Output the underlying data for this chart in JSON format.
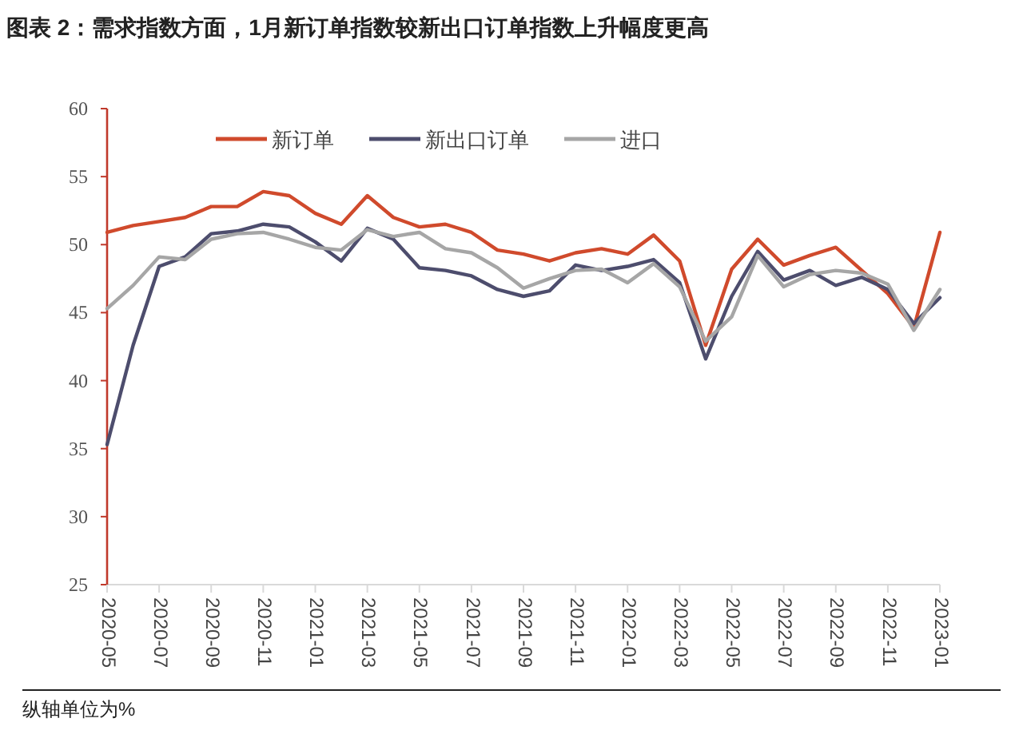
{
  "chart_data": {
    "type": "line",
    "title": "图表 2：需求指数方面，1月新订单指数较新出口订单指数上升幅度更高",
    "categories": [
      "2020-05",
      null,
      "2020-07",
      null,
      "2020-09",
      null,
      "2020-11",
      null,
      "2021-01",
      null,
      "2021-03",
      null,
      "2021-05",
      null,
      "2021-07",
      null,
      "2021-09",
      null,
      "2021-11",
      null,
      "2022-01",
      null,
      "2022-03",
      null,
      "2022-05",
      null,
      "2022-07",
      null,
      "2022-09",
      null,
      "2022-11",
      null,
      "2023-01"
    ],
    "series": [
      {
        "name": "新订单",
        "color": "#d04a2c",
        "values": [
          50.9,
          51.4,
          51.7,
          52.0,
          52.8,
          52.8,
          53.9,
          53.6,
          52.3,
          51.5,
          53.6,
          52.0,
          51.3,
          51.5,
          50.9,
          49.6,
          49.3,
          48.8,
          49.4,
          49.7,
          49.3,
          50.7,
          48.8,
          42.6,
          48.2,
          50.4,
          48.5,
          49.2,
          49.8,
          48.1,
          46.4,
          43.9,
          50.9
        ]
      },
      {
        "name": "新出口订单",
        "color": "#4d4d6d",
        "values": [
          35.3,
          42.6,
          48.4,
          49.1,
          50.8,
          51.0,
          51.5,
          51.3,
          50.2,
          48.8,
          51.2,
          50.4,
          48.3,
          48.1,
          47.7,
          46.7,
          46.2,
          46.6,
          48.5,
          48.1,
          48.4,
          48.9,
          47.2,
          41.6,
          46.2,
          49.5,
          47.4,
          48.1,
          47.0,
          47.6,
          46.7,
          44.2,
          46.1
        ]
      },
      {
        "name": "进口",
        "color": "#a6a6a6",
        "values": [
          45.3,
          47.0,
          49.1,
          48.9,
          50.4,
          50.8,
          50.9,
          50.4,
          49.8,
          49.6,
          51.1,
          50.6,
          50.9,
          49.7,
          49.4,
          48.3,
          46.8,
          47.5,
          48.1,
          48.2,
          47.2,
          48.6,
          46.9,
          42.9,
          44.7,
          49.2,
          46.9,
          47.8,
          48.1,
          47.9,
          47.1,
          43.7,
          46.7
        ]
      }
    ],
    "ylim": [
      25,
      60
    ],
    "yticks": [
      25,
      30,
      35,
      40,
      45,
      50,
      55,
      60
    ],
    "grid": false,
    "legend": "top",
    "marker": "none",
    "line_style": "solid",
    "annotations": [
      "纵轴单位为%"
    ]
  }
}
